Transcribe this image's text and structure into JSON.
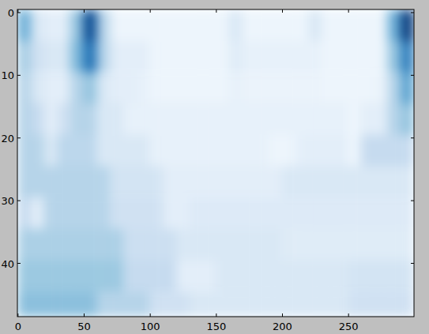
{
  "chart_data": {
    "type": "heatmap",
    "color": "Blues",
    "color_range": [
      0,
      1
    ],
    "xlim": [
      -0.5,
      299.5
    ],
    "ylim": [
      48.5,
      -0.5
    ],
    "xticks": [
      0,
      50,
      100,
      150,
      200,
      250
    ],
    "yticks": [
      0,
      10,
      20,
      30,
      40
    ],
    "x_edges": [
      -0.5,
      9.5,
      19.5,
      29.5,
      39.5,
      49.5,
      59.5,
      69.5,
      79.5,
      89.5,
      99.5,
      109.5,
      119.5,
      129.5,
      139.5,
      149.5,
      159.5,
      169.5,
      179.5,
      189.5,
      199.5,
      209.5,
      219.5,
      229.5,
      239.5,
      249.5,
      259.5,
      269.5,
      279.5,
      289.5,
      299.5
    ],
    "y_edges": [
      -0.5,
      4.5,
      9.5,
      14.5,
      19.5,
      24.5,
      29.5,
      34.5,
      39.5,
      44.5,
      48.5
    ],
    "cells": [
      [
        0.5,
        0.15,
        0.1,
        0.1,
        0.4,
        0.9,
        0.3,
        0.05,
        0.05,
        0.05,
        0.05,
        0.05,
        0.05,
        0.05,
        0.05,
        0.05,
        0.15,
        0.05,
        0.05,
        0.05,
        0.05,
        0.05,
        0.15,
        0.05,
        0.05,
        0.05,
        0.05,
        0.05,
        0.5,
        0.95
      ],
      [
        0.35,
        0.2,
        0.15,
        0.15,
        0.45,
        0.75,
        0.3,
        0.1,
        0.1,
        0.1,
        0.05,
        0.05,
        0.05,
        0.05,
        0.05,
        0.05,
        0.12,
        0.08,
        0.08,
        0.08,
        0.08,
        0.08,
        0.08,
        0.05,
        0.05,
        0.05,
        0.05,
        0.05,
        0.4,
        0.7
      ],
      [
        0.3,
        0.15,
        0.1,
        0.1,
        0.3,
        0.4,
        0.15,
        0.1,
        0.1,
        0.08,
        0.05,
        0.05,
        0.05,
        0.05,
        0.05,
        0.05,
        0.08,
        0.06,
        0.06,
        0.06,
        0.06,
        0.06,
        0.06,
        0.05,
        0.05,
        0.05,
        0.05,
        0.06,
        0.3,
        0.55
      ],
      [
        0.3,
        0.25,
        0.1,
        0.2,
        0.3,
        0.3,
        0.15,
        0.15,
        0.08,
        0.08,
        0.08,
        0.08,
        0.08,
        0.08,
        0.08,
        0.08,
        0.08,
        0.08,
        0.08,
        0.08,
        0.08,
        0.08,
        0.08,
        0.08,
        0.08,
        0.05,
        0.1,
        0.1,
        0.3,
        0.4
      ],
      [
        0.3,
        0.3,
        0.15,
        0.28,
        0.28,
        0.28,
        0.15,
        0.15,
        0.15,
        0.15,
        0.08,
        0.08,
        0.08,
        0.08,
        0.08,
        0.08,
        0.08,
        0.08,
        0.08,
        0.05,
        0.05,
        0.1,
        0.1,
        0.1,
        0.1,
        0.05,
        0.25,
        0.25,
        0.25,
        0.25
      ],
      [
        0.3,
        0.3,
        0.3,
        0.3,
        0.3,
        0.3,
        0.3,
        0.18,
        0.18,
        0.18,
        0.18,
        0.1,
        0.1,
        0.1,
        0.1,
        0.1,
        0.1,
        0.1,
        0.1,
        0.1,
        0.15,
        0.15,
        0.15,
        0.15,
        0.15,
        0.15,
        0.15,
        0.15,
        0.15,
        0.15
      ],
      [
        0.25,
        0.1,
        0.3,
        0.3,
        0.3,
        0.3,
        0.3,
        0.2,
        0.2,
        0.2,
        0.2,
        0.1,
        0.1,
        0.13,
        0.13,
        0.13,
        0.13,
        0.13,
        0.13,
        0.13,
        0.13,
        0.13,
        0.13,
        0.13,
        0.13,
        0.13,
        0.13,
        0.13,
        0.13,
        0.13
      ],
      [
        0.33,
        0.33,
        0.33,
        0.33,
        0.33,
        0.33,
        0.33,
        0.33,
        0.22,
        0.22,
        0.22,
        0.22,
        0.15,
        0.15,
        0.15,
        0.15,
        0.15,
        0.15,
        0.15,
        0.15,
        0.12,
        0.12,
        0.12,
        0.12,
        0.12,
        0.12,
        0.12,
        0.12,
        0.12,
        0.12
      ],
      [
        0.38,
        0.38,
        0.38,
        0.38,
        0.38,
        0.38,
        0.38,
        0.38,
        0.25,
        0.25,
        0.25,
        0.25,
        0.1,
        0.1,
        0.1,
        0.15,
        0.15,
        0.15,
        0.15,
        0.15,
        0.15,
        0.15,
        0.15,
        0.15,
        0.15,
        0.18,
        0.18,
        0.18,
        0.18,
        0.18
      ],
      [
        0.42,
        0.42,
        0.42,
        0.42,
        0.42,
        0.42,
        0.3,
        0.3,
        0.3,
        0.3,
        0.2,
        0.2,
        0.2,
        0.15,
        0.15,
        0.15,
        0.15,
        0.15,
        0.15,
        0.15,
        0.15,
        0.15,
        0.15,
        0.15,
        0.15,
        0.2,
        0.2,
        0.2,
        0.2,
        0.2
      ]
    ]
  }
}
